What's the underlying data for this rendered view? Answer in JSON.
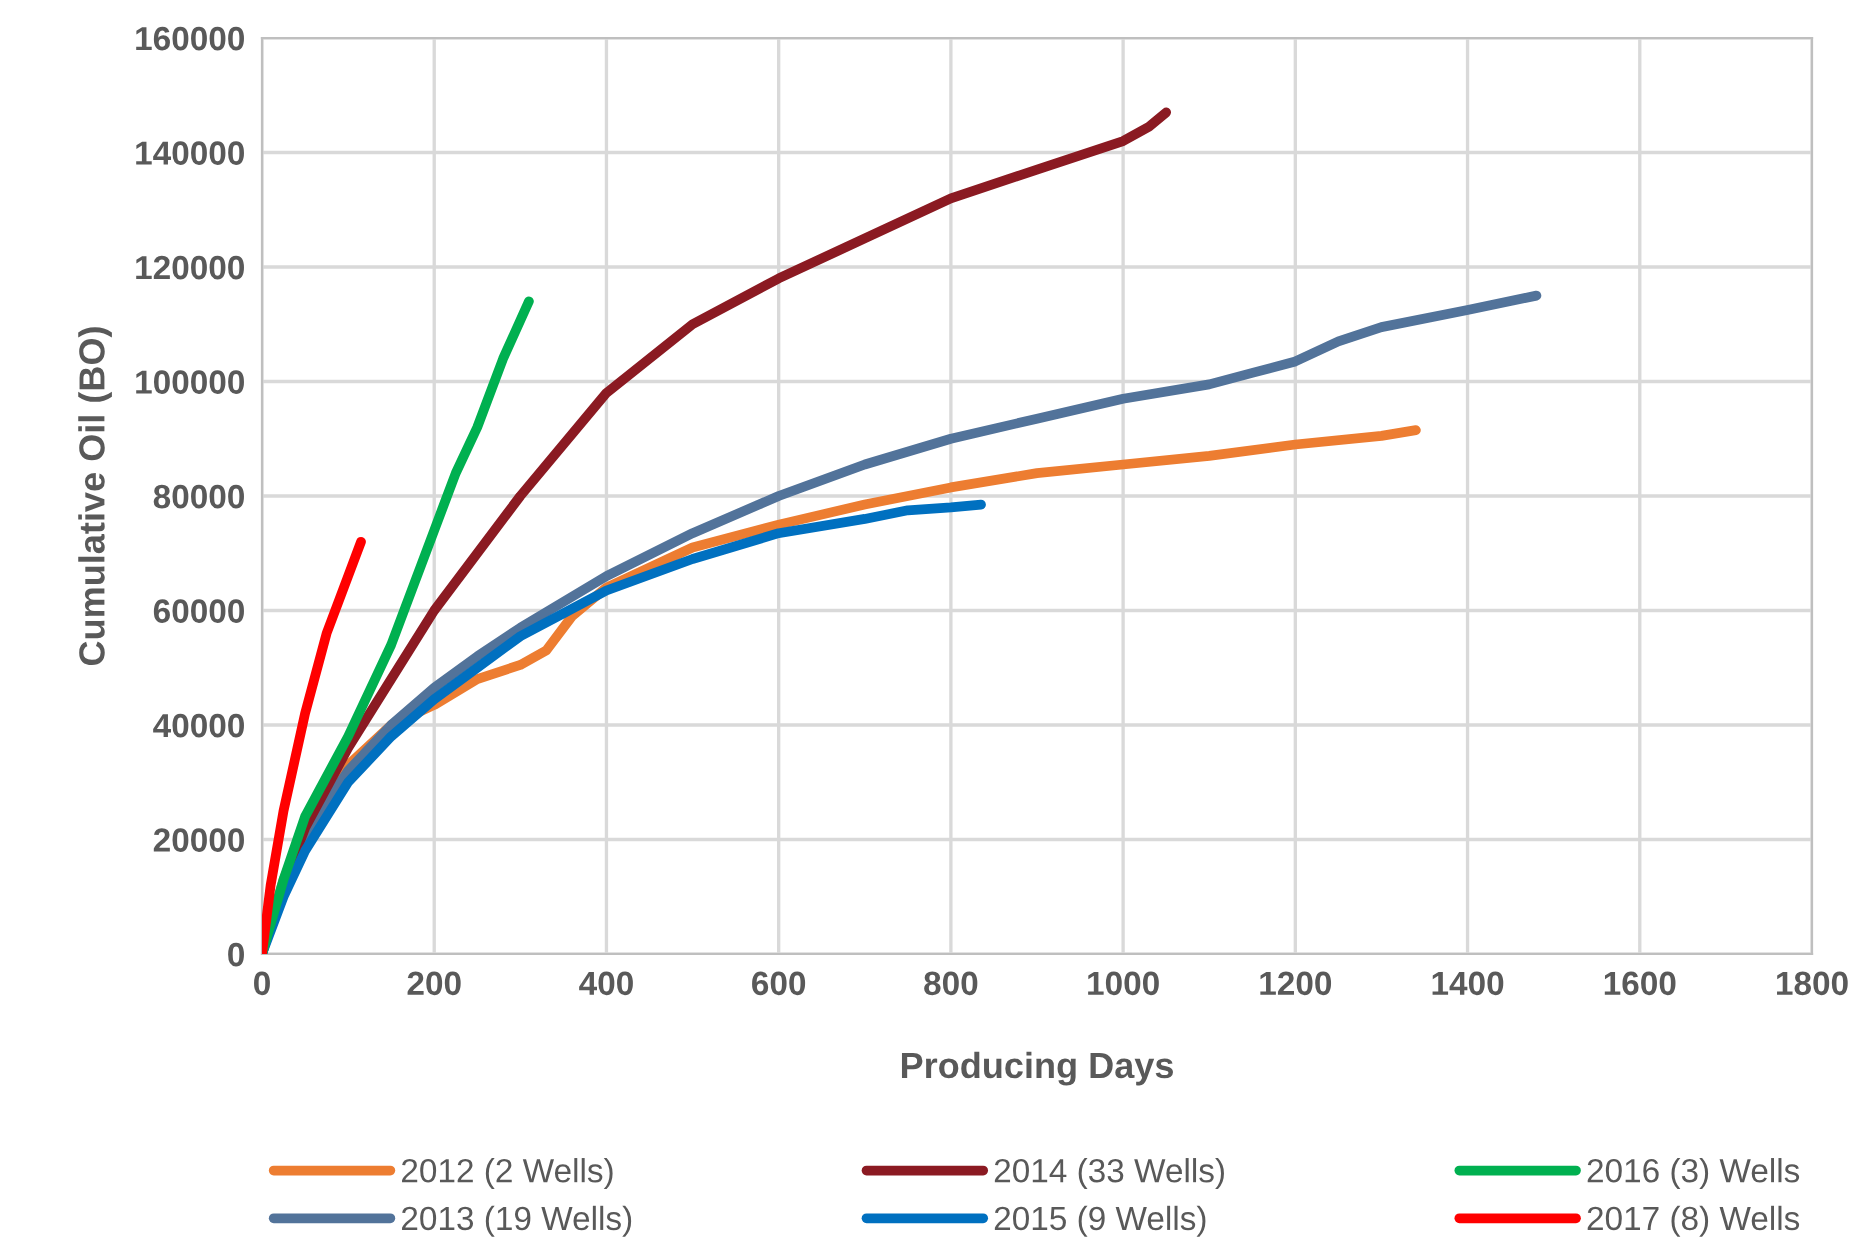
{
  "chart_data": {
    "type": "line",
    "xlabel": "Producing Days",
    "ylabel": "Cumulative Oil (BO)",
    "xlim": [
      0,
      1800
    ],
    "xticks": [
      0,
      200,
      400,
      600,
      800,
      1000,
      1200,
      1400,
      1600,
      1800
    ],
    "ylim": [
      0,
      160000
    ],
    "yticks": [
      0,
      20000,
      40000,
      60000,
      80000,
      100000,
      120000,
      140000,
      160000
    ],
    "grid": true,
    "legend": "bottom",
    "marker": "none",
    "line_style": "solid",
    "series": [
      {
        "name": "2012 (2 Wells)",
        "color": "#ed7d31",
        "x": [
          0,
          25,
          50,
          100,
          150,
          200,
          250,
          300,
          330,
          360,
          400,
          500,
          600,
          700,
          800,
          900,
          1000,
          1100,
          1200,
          1300,
          1340
        ],
        "values": [
          0,
          13000,
          22000,
          33000,
          40000,
          43500,
          48000,
          50500,
          53000,
          59000,
          64000,
          71000,
          75000,
          78500,
          81500,
          84000,
          85500,
          87000,
          89000,
          90500,
          91500
        ]
      },
      {
        "name": "2013 (19 Wells)",
        "color": "#52739a",
        "x": [
          0,
          25,
          50,
          100,
          150,
          200,
          250,
          300,
          400,
          500,
          600,
          700,
          800,
          900,
          1000,
          1100,
          1150,
          1200,
          1250,
          1300,
          1400,
          1480
        ],
        "values": [
          0,
          12000,
          21000,
          32000,
          40000,
          46500,
          52000,
          57000,
          66000,
          73500,
          80000,
          85500,
          90000,
          93500,
          97000,
          99500,
          101500,
          103500,
          107000,
          109500,
          112500,
          115000
        ]
      },
      {
        "name": "2014 (33 Wells)",
        "color": "#8b1a22",
        "x": [
          0,
          25,
          50,
          100,
          150,
          200,
          300,
          400,
          500,
          600,
          700,
          800,
          900,
          1000,
          1030,
          1050
        ],
        "values": [
          0,
          12000,
          22000,
          36000,
          48000,
          60000,
          80000,
          98000,
          110000,
          118000,
          125000,
          132000,
          137000,
          142000,
          144500,
          147000
        ]
      },
      {
        "name": "2015 (9 Wells)",
        "color": "#0070c0",
        "x": [
          0,
          25,
          50,
          100,
          150,
          200,
          250,
          300,
          350,
          400,
          500,
          600,
          700,
          750,
          800,
          835
        ],
        "values": [
          0,
          10000,
          18000,
          30000,
          38000,
          44500,
          50000,
          55500,
          59500,
          63500,
          69000,
          73500,
          76000,
          77500,
          78000,
          78500
        ]
      },
      {
        "name": "2016 (3) Wells",
        "color": "#00b050",
        "x": [
          0,
          25,
          50,
          100,
          150,
          200,
          225,
          250,
          280,
          310
        ],
        "values": [
          0,
          13000,
          24000,
          38000,
          54000,
          74000,
          84000,
          92000,
          104000,
          114000
        ]
      },
      {
        "name": "2017 (8) Wells",
        "color": "#ff0000",
        "x": [
          0,
          10,
          25,
          50,
          75,
          100,
          115
        ],
        "values": [
          0,
          12000,
          25000,
          42000,
          56000,
          66000,
          72000
        ]
      }
    ]
  }
}
